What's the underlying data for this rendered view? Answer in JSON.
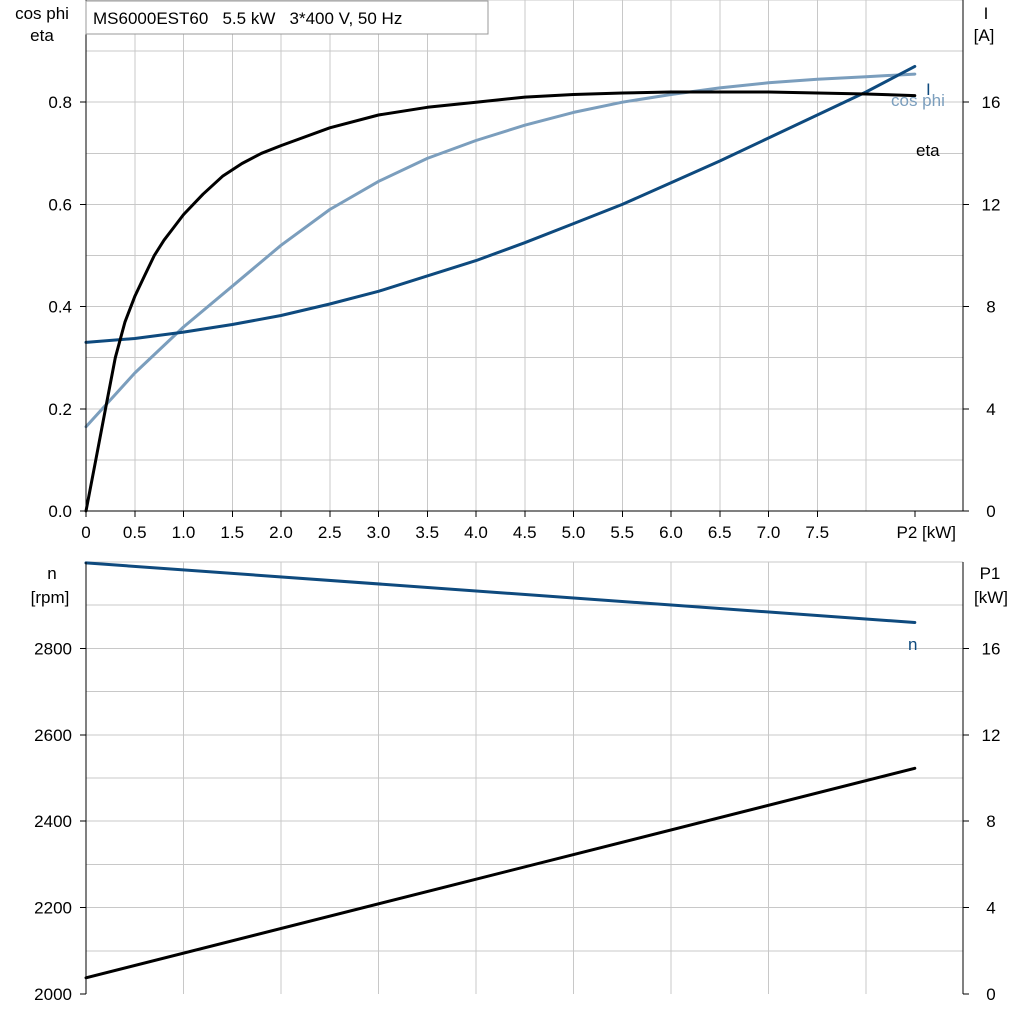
{
  "title": "MS6000EST60   5.5 kW   3*400 V, 50 Hz",
  "colors": {
    "eta": "#000000",
    "cosphi": "#7b9ebd",
    "current": "#0e4a7e",
    "speed": "#0e4a7e",
    "p1": "#000000",
    "grid": "#c8c8c8"
  },
  "chart_data": [
    {
      "type": "line",
      "title": "MS6000EST60   5.5 kW   3*400 V, 50 Hz",
      "xlabel": "P2 [kW]",
      "xlim": [
        0,
        9
      ],
      "xticks": [
        "0",
        "0.5",
        "1.0",
        "1.5",
        "2.0",
        "2.5",
        "3.0",
        "3.5",
        "4.0",
        "4.5",
        "5.0",
        "5.5",
        "6.0",
        "6.5",
        "7.0",
        "7.5"
      ],
      "ylabel_left": [
        "cos phi",
        "eta"
      ],
      "ylim_left": [
        0,
        1.0
      ],
      "yticks_left": [
        "0.0",
        "0.2",
        "0.4",
        "0.6",
        "0.8"
      ],
      "ylabel_right": [
        "I",
        "[A]"
      ],
      "ylim_right": [
        0,
        20
      ],
      "yticks_right": [
        "0",
        "4",
        "8",
        "12",
        "16"
      ],
      "grid": true,
      "series": [
        {
          "name": "eta",
          "axis": "left",
          "x": [
            0,
            0.1,
            0.2,
            0.3,
            0.4,
            0.5,
            0.6,
            0.7,
            0.8,
            0.9,
            1.0,
            1.2,
            1.4,
            1.6,
            1.8,
            2.0,
            2.5,
            3.0,
            3.5,
            4.0,
            4.5,
            5.0,
            5.5,
            6.0,
            6.5,
            7.0,
            7.5,
            8.0,
            8.5
          ],
          "y": [
            0.0,
            0.1,
            0.2,
            0.3,
            0.37,
            0.42,
            0.46,
            0.5,
            0.53,
            0.555,
            0.58,
            0.62,
            0.655,
            0.68,
            0.7,
            0.715,
            0.75,
            0.775,
            0.79,
            0.8,
            0.81,
            0.815,
            0.818,
            0.82,
            0.82,
            0.82,
            0.818,
            0.816,
            0.813
          ]
        },
        {
          "name": "cos phi",
          "axis": "left",
          "x": [
            0,
            0.5,
            1.0,
            1.5,
            2.0,
            2.5,
            3.0,
            3.5,
            4.0,
            4.5,
            5.0,
            5.5,
            6.0,
            6.5,
            7.0,
            7.5,
            8.0,
            8.5
          ],
          "y": [
            0.165,
            0.27,
            0.36,
            0.44,
            0.52,
            0.59,
            0.645,
            0.69,
            0.725,
            0.755,
            0.78,
            0.8,
            0.815,
            0.828,
            0.838,
            0.845,
            0.85,
            0.855
          ]
        },
        {
          "name": "I",
          "axis": "right",
          "x": [
            0,
            0.5,
            1.0,
            1.5,
            2.0,
            2.5,
            3.0,
            3.5,
            4.0,
            4.5,
            5.0,
            5.5,
            6.0,
            6.5,
            7.0,
            7.5,
            8.0,
            8.5
          ],
          "y": [
            6.6,
            6.75,
            7.0,
            7.3,
            7.65,
            8.1,
            8.6,
            9.2,
            9.8,
            10.5,
            11.25,
            12.0,
            12.85,
            13.7,
            14.6,
            15.5,
            16.4,
            17.4
          ]
        }
      ]
    },
    {
      "type": "line",
      "xlim": [
        0,
        9
      ],
      "ylabel_left": [
        "n",
        "[rpm]"
      ],
      "ylim_left": [
        2000,
        3000
      ],
      "yticks_left": [
        "2000",
        "2200",
        "2400",
        "2600",
        "2800"
      ],
      "ylabel_right": [
        "P1",
        "[kW]"
      ],
      "ylim_right": [
        0,
        20
      ],
      "yticks_right": [
        "0",
        "4",
        "8",
        "12",
        "16"
      ],
      "grid": true,
      "series": [
        {
          "name": "n",
          "axis": "left",
          "x": [
            0,
            8.5
          ],
          "y": [
            2998,
            2860
          ]
        },
        {
          "axis": "right",
          "x": [
            0,
            8.5
          ],
          "y": [
            0.75,
            10.45
          ]
        }
      ]
    }
  ]
}
